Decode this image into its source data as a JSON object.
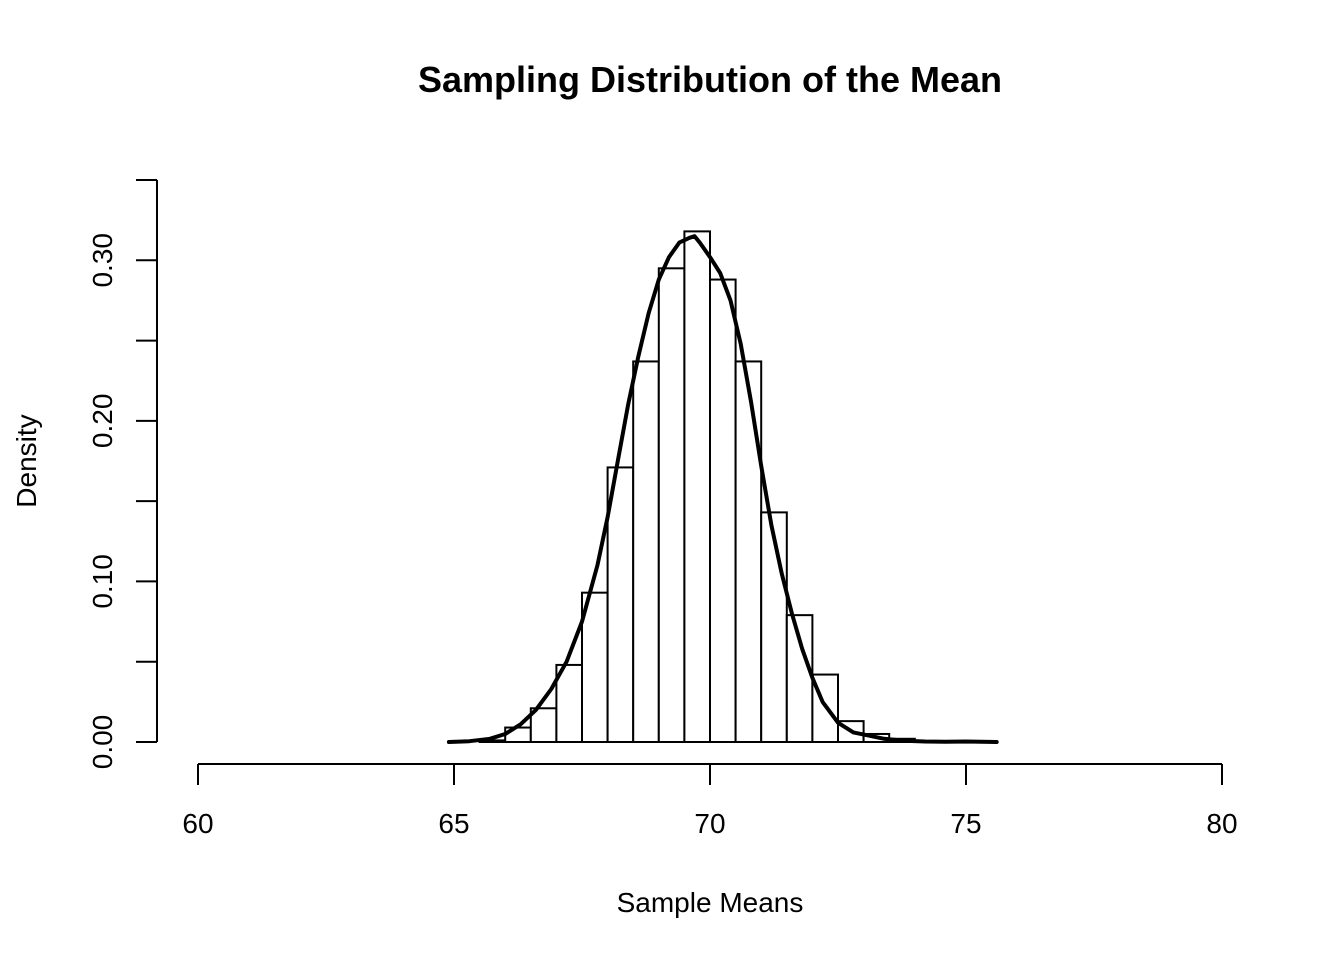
{
  "chart_data": {
    "type": "bar",
    "title": "Sampling Distribution of the Mean",
    "xlabel": "Sample Means",
    "ylabel": "Density",
    "xlim": [
      60,
      80
    ],
    "ylim": [
      0,
      0.35
    ],
    "x_ticks": [
      60,
      65,
      70,
      75,
      80
    ],
    "x_tick_labels": [
      "60",
      "65",
      "70",
      "75",
      "80"
    ],
    "y_ticks": [
      0,
      0.05,
      0.1,
      0.15,
      0.2,
      0.25,
      0.3,
      0.35
    ],
    "y_tick_labels": [
      "0.00",
      "",
      "0.10",
      "",
      "0.20",
      "",
      "0.30",
      ""
    ],
    "histogram": {
      "bin_width": 0.5,
      "bins": [
        {
          "start": 65.5,
          "density": 0.001
        },
        {
          "start": 66.0,
          "density": 0.009
        },
        {
          "start": 66.5,
          "density": 0.021
        },
        {
          "start": 67.0,
          "density": 0.048
        },
        {
          "start": 67.5,
          "density": 0.093
        },
        {
          "start": 68.0,
          "density": 0.171
        },
        {
          "start": 68.5,
          "density": 0.237
        },
        {
          "start": 69.0,
          "density": 0.295
        },
        {
          "start": 69.5,
          "density": 0.318
        },
        {
          "start": 70.0,
          "density": 0.288
        },
        {
          "start": 70.5,
          "density": 0.237
        },
        {
          "start": 71.0,
          "density": 0.143
        },
        {
          "start": 71.5,
          "density": 0.079
        },
        {
          "start": 72.0,
          "density": 0.042
        },
        {
          "start": 72.5,
          "density": 0.013
        },
        {
          "start": 73.0,
          "density": 0.005
        },
        {
          "start": 73.5,
          "density": 0.002
        }
      ]
    },
    "density_curve": {
      "x": [
        64.9,
        65.3,
        65.7,
        66.0,
        66.3,
        66.6,
        66.9,
        67.2,
        67.5,
        67.8,
        68.0,
        68.2,
        68.4,
        68.6,
        68.8,
        69.0,
        69.2,
        69.4,
        69.6,
        69.7,
        69.8,
        70.0,
        70.2,
        70.4,
        70.6,
        70.8,
        71.0,
        71.2,
        71.4,
        71.6,
        71.8,
        72.0,
        72.2,
        72.5,
        72.8,
        73.1,
        73.4,
        73.8,
        74.2,
        74.6,
        75.0,
        75.3,
        75.6
      ],
      "y": [
        0.0,
        0.0005,
        0.002,
        0.005,
        0.011,
        0.02,
        0.033,
        0.05,
        0.075,
        0.11,
        0.14,
        0.175,
        0.21,
        0.24,
        0.267,
        0.288,
        0.302,
        0.311,
        0.314,
        0.315,
        0.311,
        0.302,
        0.292,
        0.275,
        0.248,
        0.212,
        0.172,
        0.135,
        0.105,
        0.08,
        0.058,
        0.04,
        0.025,
        0.012,
        0.006,
        0.004,
        0.002,
        0.0008,
        0.0003,
        0.0002,
        0.0003,
        0.0001,
        0.0
      ]
    },
    "grid": false,
    "legend": "none"
  }
}
